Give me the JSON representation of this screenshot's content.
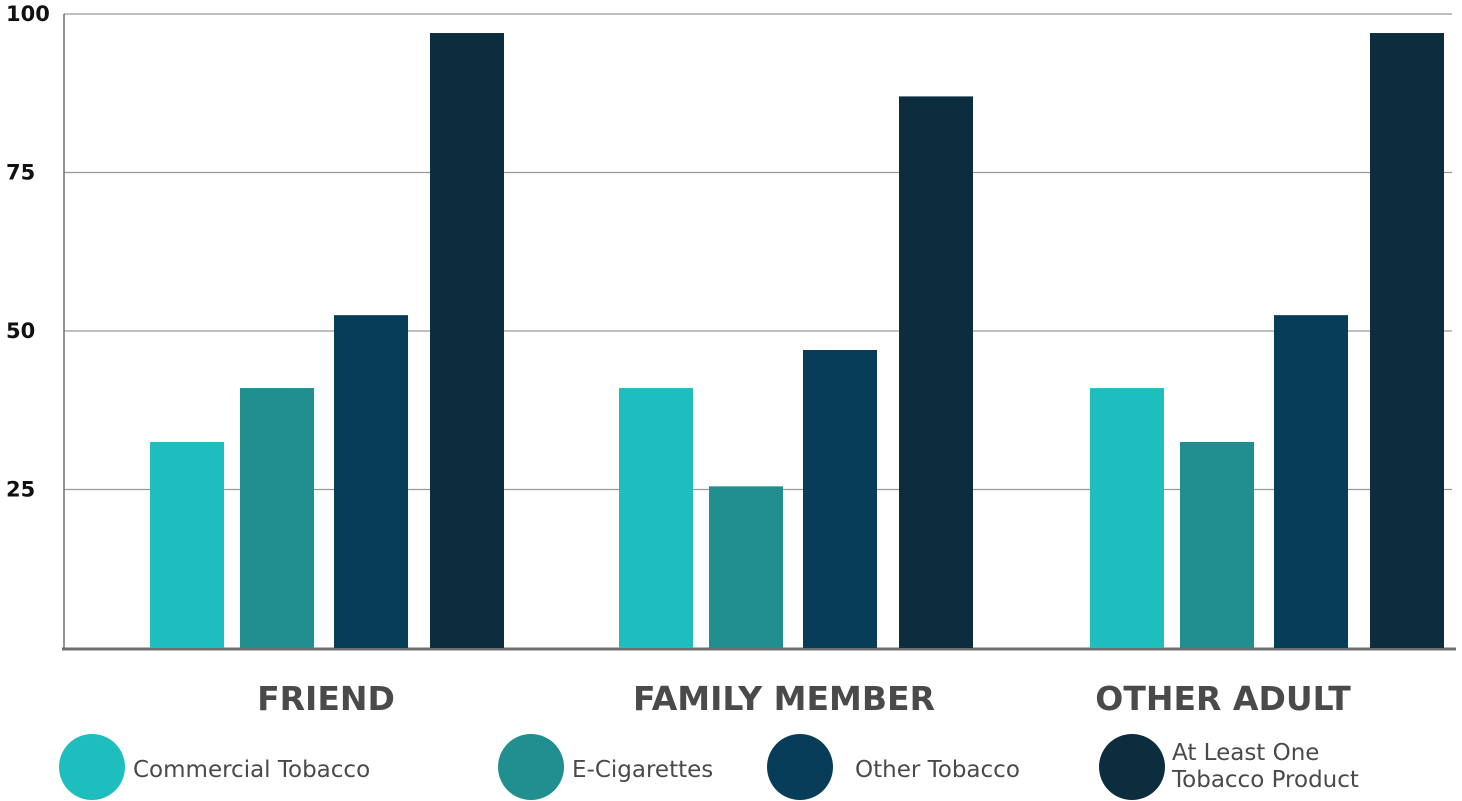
{
  "chart_data": {
    "type": "bar",
    "categories": [
      "FRIEND",
      "FAMILY MEMBER",
      "OTHER ADULT"
    ],
    "series": [
      {
        "name": "Commercial Tobacco",
        "values": [
          32.5,
          41,
          41
        ],
        "color": "#1EBEBF"
      },
      {
        "name": "E-Cigarettes",
        "values": [
          41,
          25.5,
          32.5
        ],
        "color": "#218F90"
      },
      {
        "name": "Other Tobacco",
        "values": [
          52.5,
          47,
          52.5
        ],
        "color": "#073D58"
      },
      {
        "name": "At Least One Tobacco Product",
        "legend_lines": [
          "At Least One",
          "Tobacco Product"
        ],
        "values": [
          97,
          87,
          97
        ],
        "color": "#0C2D3D"
      }
    ],
    "yticks": [
      "25",
      "50",
      "75",
      "100"
    ],
    "ytick_values": [
      25,
      50,
      75,
      100
    ],
    "ylim": [
      0,
      100
    ],
    "grid": true,
    "legend_position": "bottom",
    "title": "",
    "xlabel": "",
    "ylabel": ""
  }
}
